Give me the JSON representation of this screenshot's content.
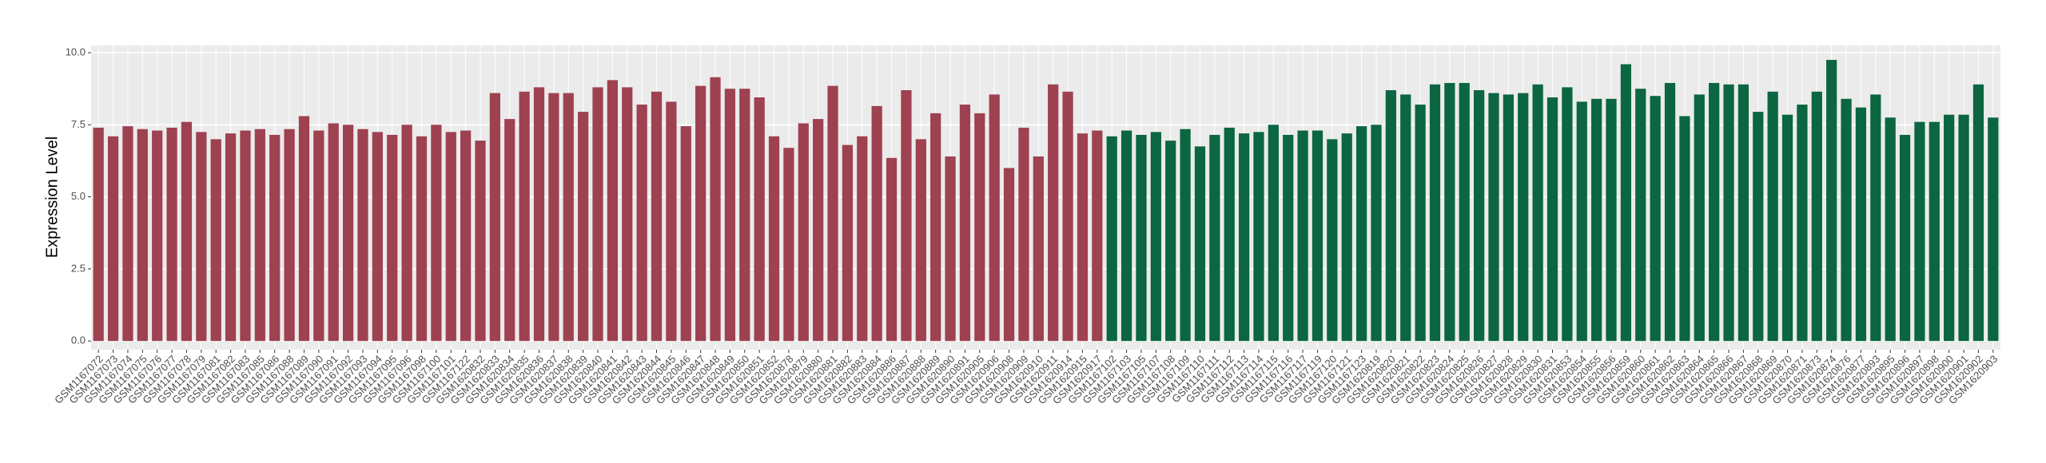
{
  "chart_data": {
    "type": "bar",
    "y_label": "Expression Level",
    "categories": [
      "GSM1167072",
      "GSM1167073",
      "GSM1167074",
      "GSM1167075",
      "GSM1167076",
      "GSM1167077",
      "GSM1167078",
      "GSM1167079",
      "GSM1167081",
      "GSM1167082",
      "GSM1167083",
      "GSM1167085",
      "GSM1167086",
      "GSM1167088",
      "GSM1167089",
      "GSM1167090",
      "GSM1167091",
      "GSM1167092",
      "GSM1167093",
      "GSM1167094",
      "GSM1167095",
      "GSM1167096",
      "GSM1167098",
      "GSM1167100",
      "GSM1167101",
      "GSM1167122",
      "GSM1620832",
      "GSM1620833",
      "GSM1620834",
      "GSM1620835",
      "GSM1620836",
      "GSM1620837",
      "GSM1620838",
      "GSM1620839",
      "GSM1620840",
      "GSM1620841",
      "GSM1620842",
      "GSM1620843",
      "GSM1620844",
      "GSM1620845",
      "GSM1620846",
      "GSM1620847",
      "GSM1620848",
      "GSM1620849",
      "GSM1620850",
      "GSM1620851",
      "GSM1620852",
      "GSM1620878",
      "GSM1620879",
      "GSM1620880",
      "GSM1620881",
      "GSM1620882",
      "GSM1620883",
      "GSM1620884",
      "GSM1620886",
      "GSM1620887",
      "GSM1620888",
      "GSM1620889",
      "GSM1620890",
      "GSM1620891",
      "GSM1620905",
      "GSM1620906",
      "GSM1620908",
      "GSM1620909",
      "GSM1620910",
      "GSM1620911",
      "GSM1620914",
      "GSM1620915",
      "GSM1620917",
      "GSM1167102",
      "GSM1167103",
      "GSM1167105",
      "GSM1167107",
      "GSM1167108",
      "GSM1167109",
      "GSM1167110",
      "GSM1167111",
      "GSM1167112",
      "GSM1167113",
      "GSM1167114",
      "GSM1167115",
      "GSM1167116",
      "GSM1167117",
      "GSM1167119",
      "GSM1167120",
      "GSM1167121",
      "GSM1167123",
      "GSM1620819",
      "GSM1620820",
      "GSM1620821",
      "GSM1620822",
      "GSM1620823",
      "GSM1620824",
      "GSM1620825",
      "GSM1620826",
      "GSM1620827",
      "GSM1620828",
      "GSM1620829",
      "GSM1620830",
      "GSM1620831",
      "GSM1620853",
      "GSM1620854",
      "GSM1620855",
      "GSM1620856",
      "GSM1620859",
      "GSM1620860",
      "GSM1620861",
      "GSM1620862",
      "GSM1620863",
      "GSM1620864",
      "GSM1620865",
      "GSM1620866",
      "GSM1620867",
      "GSM1620868",
      "GSM1620869",
      "GSM1620870",
      "GSM1620871",
      "GSM1620873",
      "GSM1620874",
      "GSM1620876",
      "GSM1620877",
      "GSM1620893",
      "GSM1620895",
      "GSM1620896",
      "GSM1620897",
      "GSM1620898",
      "GSM1620900",
      "GSM1620901",
      "GSM1620902",
      "GSM1620903"
    ],
    "series": [
      {
        "color": "#9e4150",
        "values": [
          7.4,
          7.1,
          7.45,
          7.35,
          7.3,
          7.4,
          7.6,
          7.25,
          7.0,
          7.2,
          7.3,
          7.35,
          7.15,
          7.35,
          7.8,
          7.3,
          7.55,
          7.5,
          7.35,
          7.25,
          7.15,
          7.5,
          7.1,
          7.5,
          7.25,
          7.3,
          6.95,
          8.6,
          7.7,
          8.65,
          8.8,
          8.6,
          8.6,
          7.95,
          8.8,
          9.05,
          8.8,
          8.2,
          8.65,
          8.3,
          7.45,
          8.85,
          9.15,
          8.75,
          8.75,
          8.45,
          7.1,
          6.7,
          7.55,
          7.7,
          8.85,
          6.8,
          7.1,
          8.15,
          6.35,
          8.7,
          7.0,
          7.9,
          6.4,
          8.2,
          7.9,
          8.55,
          6.0,
          7.4,
          6.4,
          8.9,
          8.65,
          7.2,
          7.3,
          null,
          null,
          null,
          null,
          null,
          null,
          null,
          null,
          null,
          null,
          null,
          null,
          null,
          null,
          null,
          null,
          null,
          null,
          null,
          null,
          null,
          null,
          null,
          null,
          null,
          null,
          null,
          null,
          null,
          null,
          null,
          null,
          null,
          null,
          null,
          null,
          null,
          null,
          null,
          null,
          null,
          null,
          null,
          null,
          null,
          null,
          null,
          null,
          null,
          null,
          null,
          null,
          null,
          null,
          null,
          null,
          null,
          null,
          null,
          null,
          null
        ]
      },
      {
        "color": "#0b6641",
        "values": [
          null,
          null,
          null,
          null,
          null,
          null,
          null,
          null,
          null,
          null,
          null,
          null,
          null,
          null,
          null,
          null,
          null,
          null,
          null,
          null,
          null,
          null,
          null,
          null,
          null,
          null,
          null,
          null,
          null,
          null,
          null,
          null,
          null,
          null,
          null,
          null,
          null,
          null,
          null,
          null,
          null,
          null,
          null,
          null,
          null,
          null,
          null,
          null,
          null,
          null,
          null,
          null,
          null,
          null,
          null,
          null,
          null,
          null,
          null,
          null,
          null,
          null,
          null,
          null,
          null,
          null,
          null,
          null,
          null,
          7.1,
          7.3,
          7.15,
          7.25,
          6.95,
          7.35,
          6.75,
          7.15,
          7.4,
          7.2,
          7.25,
          7.5,
          7.15,
          7.3,
          7.3,
          7.0,
          7.2,
          7.45,
          7.5,
          8.7,
          8.55,
          8.2,
          8.9,
          8.95,
          8.95,
          8.7,
          8.6,
          8.55,
          8.6,
          8.9,
          8.45,
          8.8,
          8.3,
          8.4,
          8.4,
          9.6,
          8.75,
          8.5,
          8.95,
          7.8,
          8.55,
          8.95,
          8.9,
          8.9,
          7.95,
          8.65,
          7.85,
          8.2,
          8.65,
          9.75,
          8.4,
          8.1,
          8.55,
          7.75,
          7.15,
          7.6,
          7.6,
          7.85,
          7.85,
          8.9,
          7.75
        ]
      }
    ],
    "ylim": [
      -0.3,
      10.25
    ],
    "yticks": [
      {
        "value": 0,
        "label": "0.0"
      },
      {
        "value": 2.5,
        "label": "2.5"
      },
      {
        "value": 5,
        "label": "5.0"
      },
      {
        "value": 7.5,
        "label": "7.5"
      },
      {
        "value": 10,
        "label": "10.0"
      }
    ],
    "grid": true
  }
}
